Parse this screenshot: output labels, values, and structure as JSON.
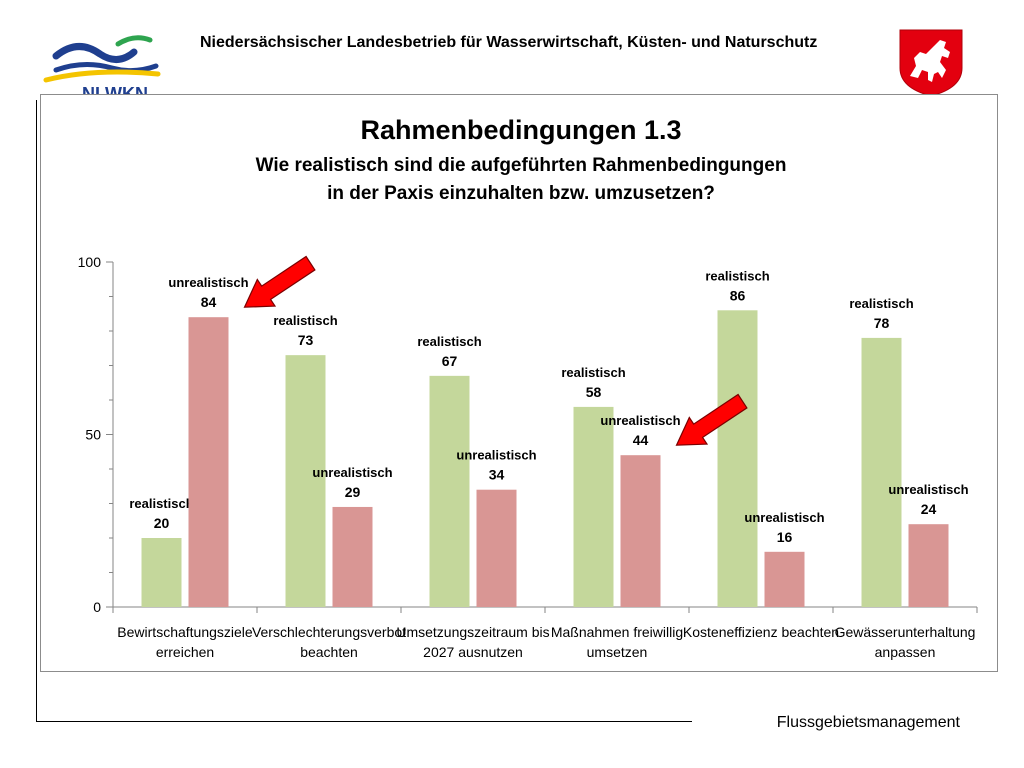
{
  "header": {
    "org_name": "Niedersächsischer Landesbetrieb für Wasserwirtschaft, Küsten- und Naturschutz",
    "logo_text": "NLWKN"
  },
  "footer": {
    "label": "Flussgebietsmanagement"
  },
  "colors": {
    "realistisch": "#c4d79b",
    "unrealistisch": "#d99694",
    "arrow": "#ff0000",
    "logo_blue": "#1f3f8f",
    "logo_green": "#2ea44f",
    "logo_yellow": "#f4c400",
    "crest_red": "#e3000f"
  },
  "chart_data": {
    "type": "bar",
    "title": "Rahmenbedingungen 1.3",
    "subtitle_line1": "Wie realistisch sind die aufgeführten Rahmenbedingungen",
    "subtitle_line2": "in der Paxis einzuhalten bzw. umzusetzen?",
    "categories": [
      [
        "Bewirtschaftungsziele",
        "erreichen"
      ],
      [
        "Verschlechterungsverbot",
        "beachten"
      ],
      [
        "Umsetzungszeitraum bis",
        "2027 ausnutzen"
      ],
      [
        "Maßnahmen freiwillig",
        "umsetzen"
      ],
      [
        "Kosteneffizienz beachten"
      ],
      [
        "Gewässerunterhaltung",
        "anpassen"
      ]
    ],
    "series": [
      {
        "name": "realistisch",
        "values": [
          20,
          73,
          67,
          58,
          86,
          78
        ]
      },
      {
        "name": "unrealistisch",
        "values": [
          84,
          29,
          34,
          44,
          16,
          24
        ]
      }
    ],
    "ylim": [
      0,
      100
    ],
    "yticks": [
      0,
      50,
      100
    ],
    "grid": false,
    "legend": "none",
    "annotations": [
      {
        "type": "arrow",
        "target_category": 0,
        "target_series": "unrealistisch"
      },
      {
        "type": "arrow",
        "target_category": 3,
        "target_series": "unrealistisch"
      }
    ]
  }
}
